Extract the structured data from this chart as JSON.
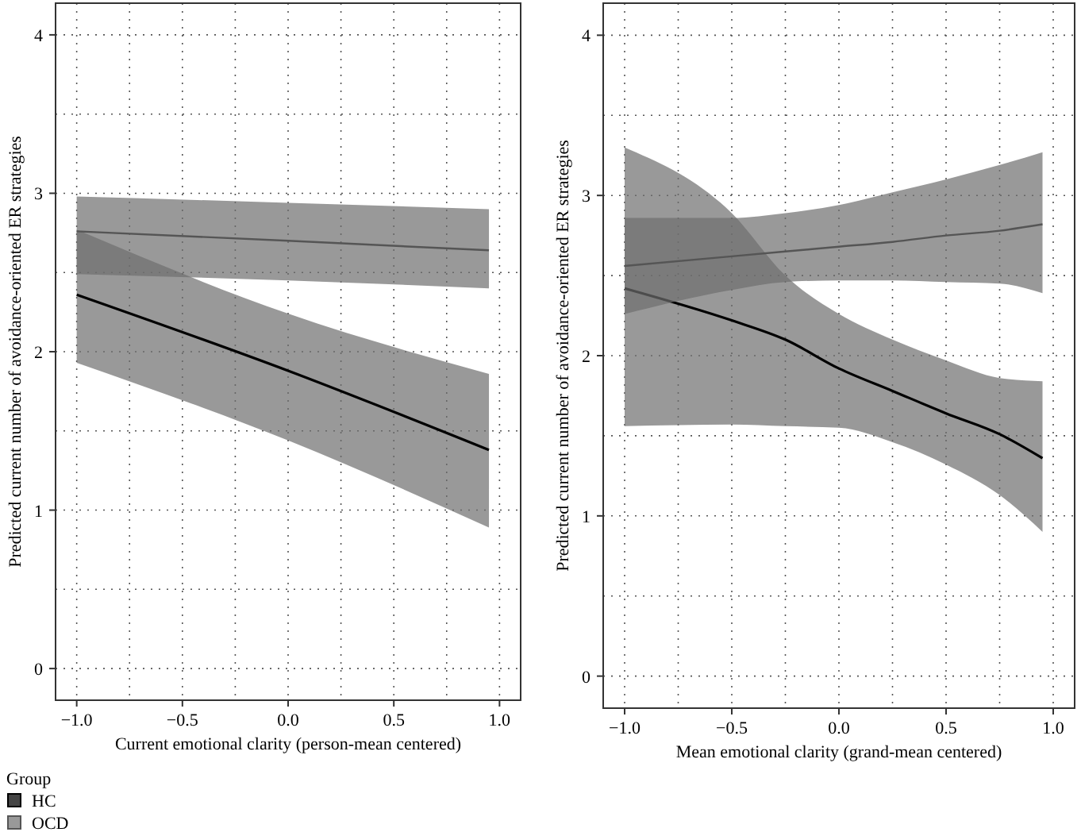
{
  "chart_data": [
    {
      "type": "line",
      "xlabel": "Current emotional clarity (person-mean centered)",
      "ylabel": "Predicted current number of avoidance-oriented ER strategies",
      "legend_title": "Group",
      "legend": "bottom",
      "grid": true,
      "marker": "none",
      "line_style": "solid",
      "xlim": [
        -1.1,
        1.1
      ],
      "xticks": [
        {
          "value": -1,
          "label": "−1.0"
        },
        {
          "value": -0.75,
          "label": null
        },
        {
          "value": -0.5,
          "label": "−0.5"
        },
        {
          "value": -0.25,
          "label": null
        },
        {
          "value": 0,
          "label": "0.0"
        },
        {
          "value": 0.25,
          "label": null
        },
        {
          "value": 0.5,
          "label": "0.5"
        },
        {
          "value": 0.75,
          "label": null
        },
        {
          "value": 1,
          "label": "1.0"
        }
      ],
      "ylim": [
        -0.2,
        4.2
      ],
      "yticks": [
        0,
        {
          "value": 0.5,
          "label": null
        },
        1,
        {
          "value": 1.5,
          "label": null
        },
        2,
        {
          "value": 2.5,
          "label": null
        },
        3,
        {
          "value": 3.5,
          "label": null
        },
        4
      ],
      "series": [
        {
          "name": "HC",
          "color": "#000000",
          "x": [
            -1,
            0,
            0.95
          ],
          "values": [
            2.36,
            1.88,
            1.38
          ],
          "lower": [
            1.93,
            1.44,
            0.89
          ],
          "upper": [
            2.77,
            2.24,
            1.86
          ]
        },
        {
          "name": "OCD",
          "color": "#555555",
          "x": [
            -1,
            0,
            0.95
          ],
          "values": [
            2.76,
            2.7,
            2.64
          ],
          "lower": [
            2.49,
            2.45,
            2.4
          ],
          "upper": [
            2.98,
            2.94,
            2.9
          ]
        }
      ]
    },
    {
      "type": "line",
      "xlabel": "Mean emotional clarity (grand-mean centered)",
      "ylabel": "Predicted current number of avoidance-oriented ER strategies",
      "grid": true,
      "marker": "none",
      "line_style": "solid",
      "xlim": [
        -1.1,
        1.1
      ],
      "xticks": [
        {
          "value": -1,
          "label": "−1.0"
        },
        {
          "value": -0.75,
          "label": null
        },
        {
          "value": -0.5,
          "label": "−0.5"
        },
        {
          "value": -0.25,
          "label": null
        },
        {
          "value": 0,
          "label": "0.0"
        },
        {
          "value": 0.25,
          "label": null
        },
        {
          "value": 0.5,
          "label": "0.5"
        },
        {
          "value": 0.75,
          "label": null
        },
        {
          "value": 1,
          "label": "1.0"
        }
      ],
      "ylim": [
        -0.2,
        4.2
      ],
      "yticks": [
        0,
        {
          "value": 0.5,
          "label": null
        },
        1,
        {
          "value": 1.5,
          "label": null
        },
        2,
        {
          "value": 2.5,
          "label": null
        },
        3,
        {
          "value": 3.5,
          "label": null
        },
        4
      ],
      "series": [
        {
          "color": "#000000",
          "x": [
            -1,
            -0.5,
            -0.25,
            0,
            0.25,
            0.5,
            0.75,
            0.95
          ],
          "values": [
            2.42,
            2.22,
            2.1,
            1.92,
            1.78,
            1.64,
            1.51,
            1.36
          ],
          "lower": [
            1.56,
            1.57,
            1.56,
            1.55,
            1.46,
            1.32,
            1.13,
            0.9
          ],
          "upper": [
            3.3,
            2.89,
            2.5,
            2.26,
            2.1,
            1.97,
            1.86,
            1.84
          ]
        },
        {
          "color": "#555555",
          "x": [
            -1,
            -0.5,
            -0.25,
            0,
            0.25,
            0.5,
            0.75,
            0.95
          ],
          "values": [
            2.56,
            2.62,
            2.65,
            2.68,
            2.71,
            2.75,
            2.78,
            2.82
          ],
          "lower": [
            2.26,
            2.41,
            2.46,
            2.47,
            2.47,
            2.46,
            2.45,
            2.39
          ],
          "upper": [
            2.86,
            2.86,
            2.89,
            2.94,
            3.02,
            3.1,
            3.19,
            3.27
          ]
        }
      ]
    }
  ]
}
